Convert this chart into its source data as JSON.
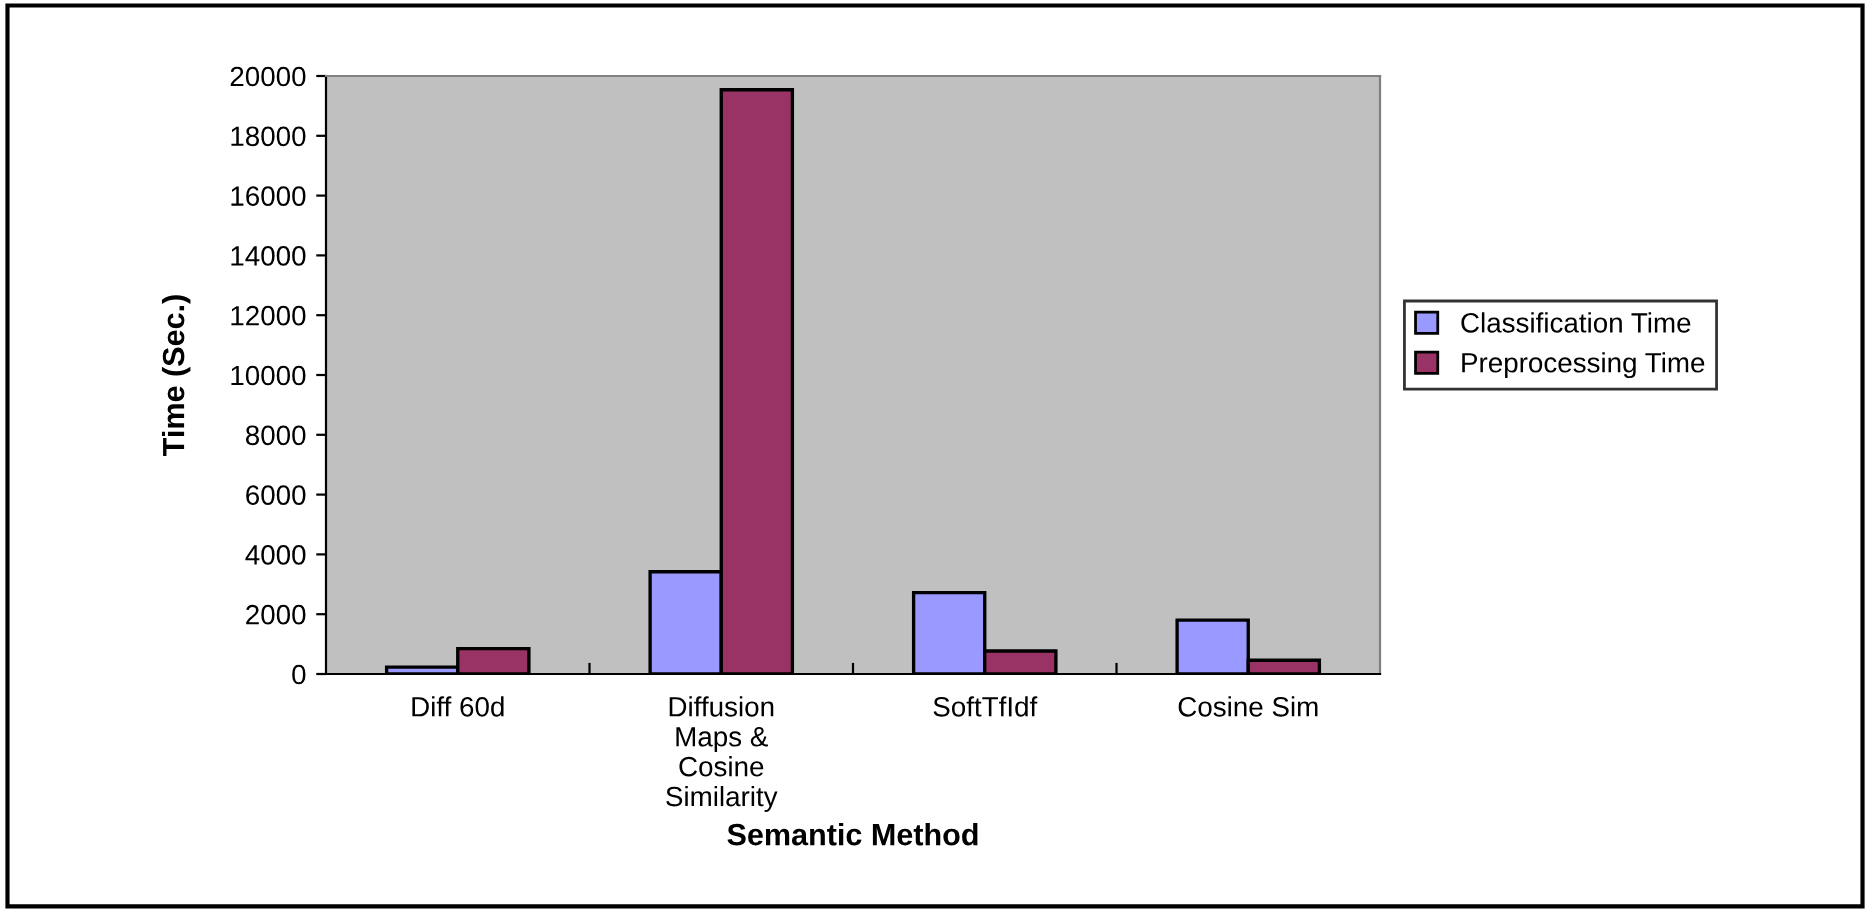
{
  "chart_data": {
    "type": "bar",
    "xlabel": "Semantic Method",
    "ylabel": "Time (Sec.)",
    "categories": [
      "Diff 60d",
      "Diffusion\nMaps &\nCosine\nSimilarity",
      "SoftTfIdf",
      "Cosine Sim"
    ],
    "series": [
      {
        "name": "Classification Time",
        "color": "#9999ff",
        "values": [
          230,
          3420,
          2720,
          1800
        ]
      },
      {
        "name": "Preprocessing Time",
        "color": "#993366",
        "values": [
          850,
          19540,
          770,
          460
        ]
      }
    ],
    "ylim": [
      0,
      20000
    ],
    "yticks": [
      0,
      2000,
      4000,
      6000,
      8000,
      10000,
      12000,
      14000,
      16000,
      18000,
      20000
    ],
    "grid": false,
    "legend": "right"
  }
}
